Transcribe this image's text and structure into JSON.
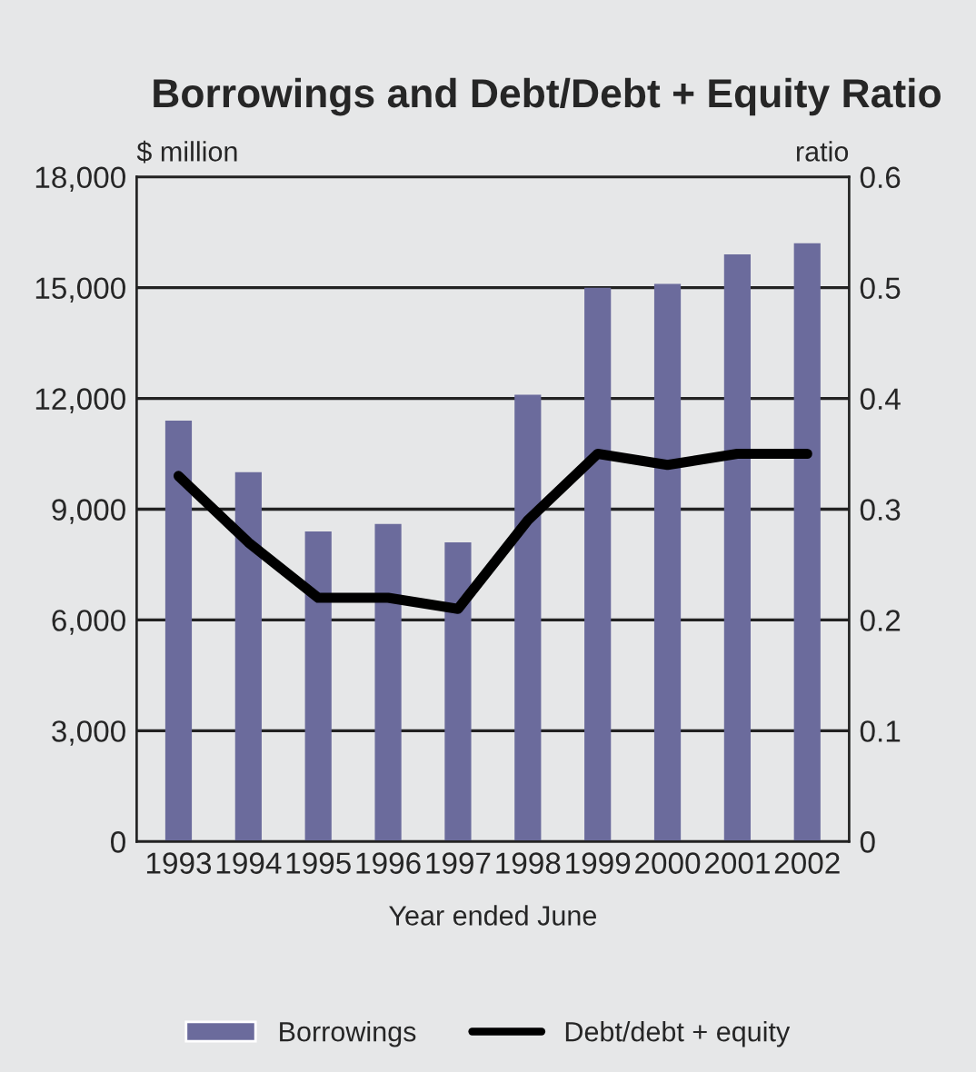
{
  "chart_data": {
    "type": "bar",
    "title": "Borrowings and Debt/Debt + Equity Ratio",
    "xlabel": "Year ended June",
    "ylabel": "$ million",
    "y2label": "ratio",
    "categories": [
      "1993",
      "1994",
      "1995",
      "1996",
      "1997",
      "1998",
      "1999",
      "2000",
      "2001",
      "2002"
    ],
    "series": [
      {
        "name": "Borrowings",
        "color": "#6b6b9c",
        "values": [
          11400,
          10000,
          8400,
          8600,
          8100,
          12100,
          15000,
          15100,
          15900,
          16200
        ]
      },
      {
        "name": "Debt/debt + equity",
        "type": "line",
        "axis": "y2",
        "color": "#000000",
        "values": [
          0.33,
          0.27,
          0.22,
          0.22,
          0.21,
          0.29,
          0.35,
          0.34,
          0.35,
          0.35
        ]
      }
    ],
    "ylim": [
      0,
      18000
    ],
    "yticks": [
      {
        "value": 0,
        "label": "0"
      },
      {
        "value": 3000,
        "label": "3,000"
      },
      {
        "value": 6000,
        "label": "6,000"
      },
      {
        "value": 9000,
        "label": "9,000"
      },
      {
        "value": 12000,
        "label": "12,000"
      },
      {
        "value": 15000,
        "label": "15,000"
      },
      {
        "value": 18000,
        "label": "18,000"
      }
    ],
    "y2lim": [
      0,
      0.6
    ],
    "y2ticks": [
      {
        "value": 0,
        "label": "0"
      },
      0.1,
      0.2,
      0.3,
      0.4,
      0.5,
      0.6
    ],
    "grid": "y",
    "legend": "bottom"
  }
}
